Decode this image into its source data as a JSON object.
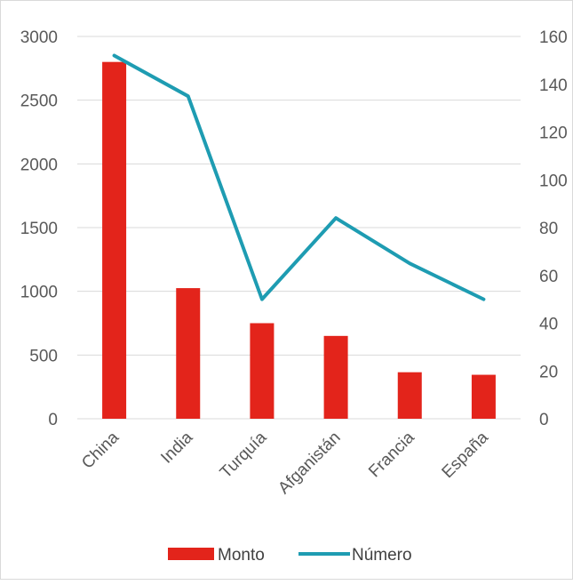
{
  "colors": {
    "bar": "#e3241b",
    "line": "#1e9cb2",
    "grid": "#d9d9d9",
    "text": "#595959"
  },
  "chart_data": {
    "type": "bar",
    "categories": [
      "China",
      "India",
      "Turquía",
      "Afganistán",
      "Francia",
      "España"
    ],
    "series": [
      {
        "name": "Monto",
        "type": "bar",
        "axis": "left",
        "values": [
          2800,
          1025,
          750,
          650,
          365,
          345
        ]
      },
      {
        "name": "Número",
        "type": "line",
        "axis": "right",
        "values": [
          152,
          135,
          50,
          84,
          65,
          50
        ]
      }
    ],
    "y_left": {
      "min": 0,
      "max": 3000,
      "ticks": [
        "0",
        "500",
        "1000",
        "1500",
        "2000",
        "2500",
        "3000"
      ]
    },
    "y_right": {
      "min": 0,
      "max": 160,
      "ticks": [
        "0",
        "20",
        "40",
        "60",
        "80",
        "100",
        "120",
        "140",
        "160"
      ]
    },
    "grid": true,
    "legend": "bottom",
    "title": "",
    "xlabel": "",
    "ylabel": ""
  }
}
